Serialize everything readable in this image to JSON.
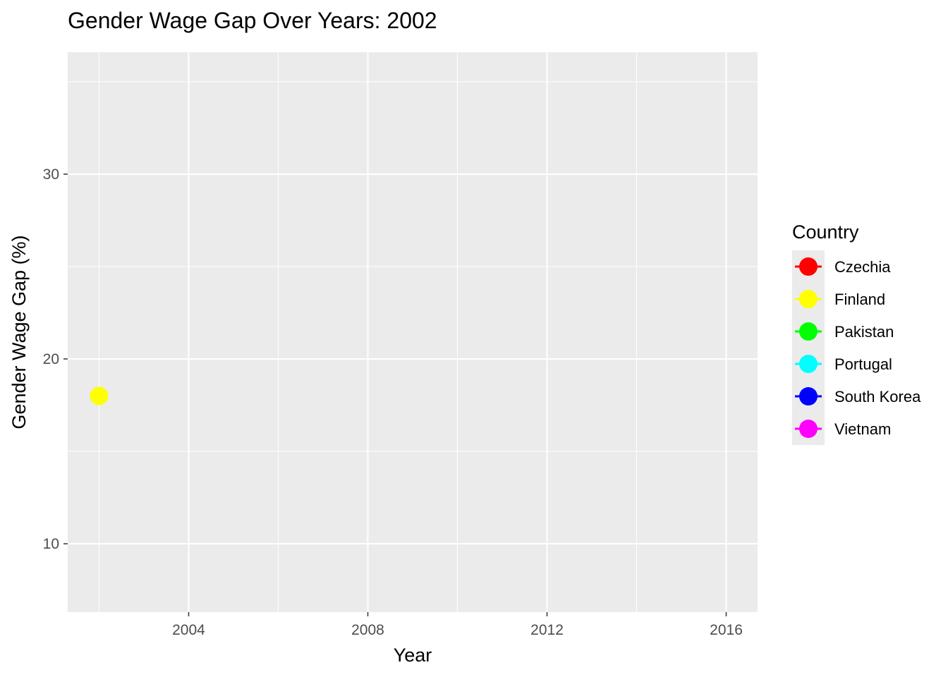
{
  "chart_data": {
    "type": "scatter",
    "title": "Gender Wage Gap Over Years: 2002",
    "xlabel": "Year",
    "ylabel": "Gender Wage Gap (%)",
    "xlim": [
      2001.3,
      2016.7
    ],
    "ylim": [
      6.3,
      36.6
    ],
    "x_ticks": [
      2004,
      2008,
      2012,
      2016
    ],
    "x_tick_labels": [
      "2004",
      "2008",
      "2012",
      "2016"
    ],
    "y_ticks": [
      10,
      20,
      30
    ],
    "y_tick_labels": [
      "10",
      "20",
      "30"
    ],
    "grid": true,
    "legend": {
      "title": "Country",
      "position": "right",
      "entries": [
        {
          "name": "Czechia",
          "color": "#FF0000"
        },
        {
          "name": "Finland",
          "color": "#FFFF00"
        },
        {
          "name": "Pakistan",
          "color": "#00FF00"
        },
        {
          "name": "Portugal",
          "color": "#00FFFF"
        },
        {
          "name": "South Korea",
          "color": "#0000FF"
        },
        {
          "name": "Vietnam",
          "color": "#FF00FF"
        }
      ]
    },
    "series": [
      {
        "name": "Finland",
        "color": "#FFFF00",
        "points": [
          {
            "x": 2002,
            "y": 18.0
          }
        ]
      }
    ]
  },
  "style": {
    "panel_background": "#EBEBEB",
    "grid_color": "#FFFFFF",
    "tick_color": "#333333"
  }
}
